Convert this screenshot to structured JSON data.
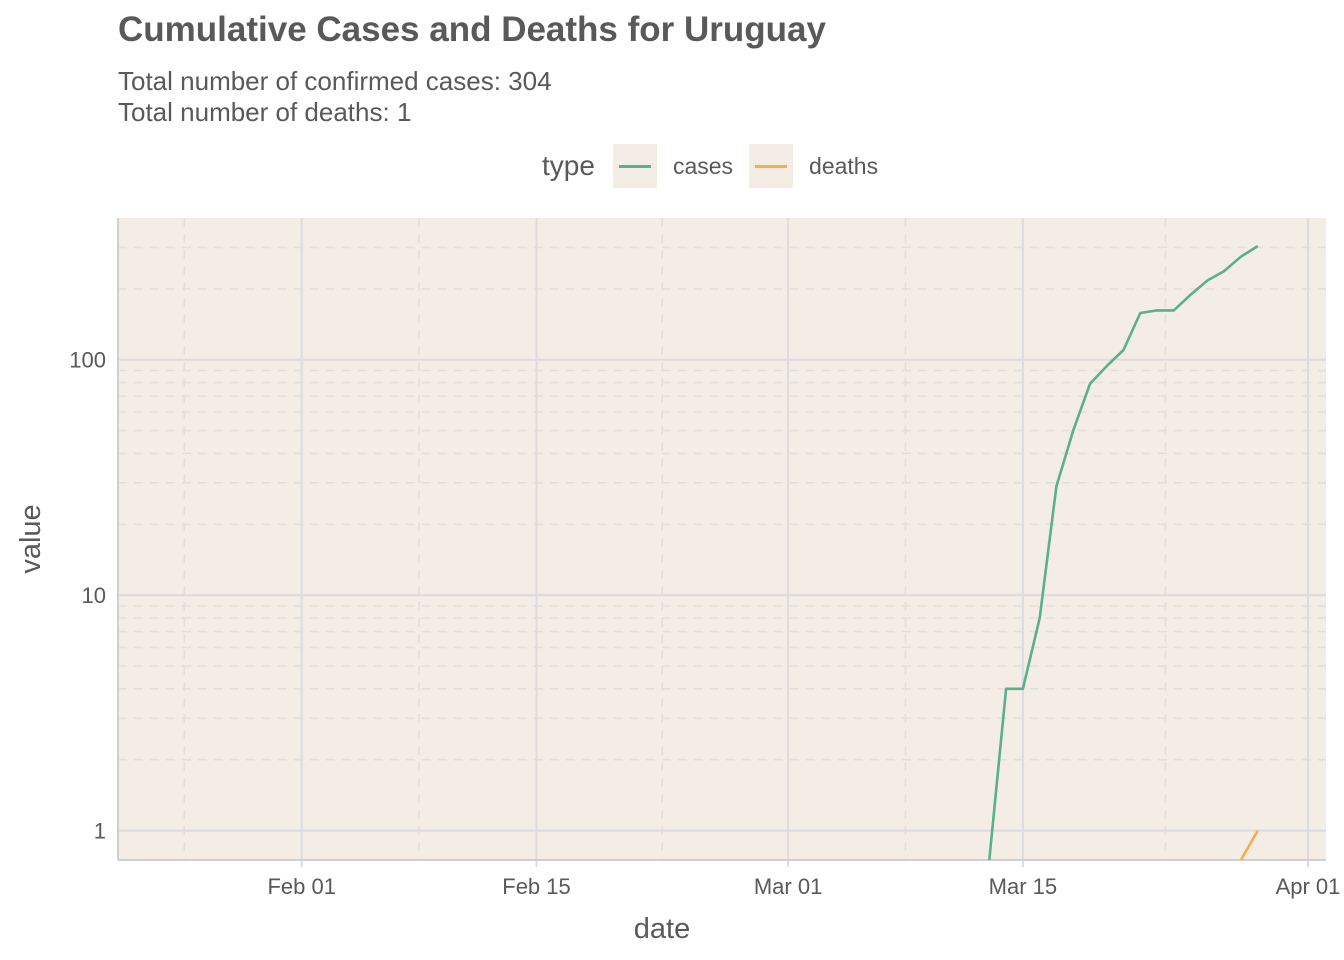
{
  "chart_data": {
    "type": "line",
    "title": "Cumulative Cases and Deaths for Uruguay",
    "subtitle": [
      "Total number of confirmed cases: 304",
      "Total number of deaths: 1"
    ],
    "xlabel": "date",
    "ylabel": "value",
    "y_scale": "log10",
    "ylim": [
      0.75,
      400
    ],
    "xlim": [
      "2020-01-22",
      "2020-04-01"
    ],
    "x_ticks": [
      {
        "date": "2020-02-01",
        "label": "Feb 01"
      },
      {
        "date": "2020-02-15",
        "label": "Feb 15"
      },
      {
        "date": "2020-03-01",
        "label": "Mar 01"
      },
      {
        "date": "2020-03-15",
        "label": "Mar 15"
      },
      {
        "date": "2020-04-01",
        "label": "Apr 01"
      }
    ],
    "y_ticks": [
      {
        "value": 1,
        "label": "1"
      },
      {
        "value": 10,
        "label": "10"
      },
      {
        "value": 100,
        "label": "100"
      }
    ],
    "legend": {
      "title": "type",
      "position": "top"
    },
    "grid": true,
    "series": [
      {
        "name": "cases",
        "color": "#5aaf8c",
        "points": [
          {
            "x": "2020-03-13",
            "y": 0.75
          },
          {
            "x": "2020-03-14",
            "y": 4
          },
          {
            "x": "2020-03-15",
            "y": 4
          },
          {
            "x": "2020-03-16",
            "y": 8
          },
          {
            "x": "2020-03-17",
            "y": 29
          },
          {
            "x": "2020-03-18",
            "y": 50
          },
          {
            "x": "2020-03-19",
            "y": 79
          },
          {
            "x": "2020-03-20",
            "y": 94
          },
          {
            "x": "2020-03-21",
            "y": 110
          },
          {
            "x": "2020-03-22",
            "y": 158
          },
          {
            "x": "2020-03-23",
            "y": 162
          },
          {
            "x": "2020-03-24",
            "y": 162
          },
          {
            "x": "2020-03-25",
            "y": 189
          },
          {
            "x": "2020-03-26",
            "y": 217
          },
          {
            "x": "2020-03-27",
            "y": 238
          },
          {
            "x": "2020-03-28",
            "y": 274
          },
          {
            "x": "2020-03-29",
            "y": 304
          }
        ]
      },
      {
        "name": "deaths",
        "color": "#f6ad4d",
        "points": [
          {
            "x": "2020-03-28",
            "y": 0.75
          },
          {
            "x": "2020-03-29",
            "y": 1
          }
        ]
      }
    ]
  }
}
